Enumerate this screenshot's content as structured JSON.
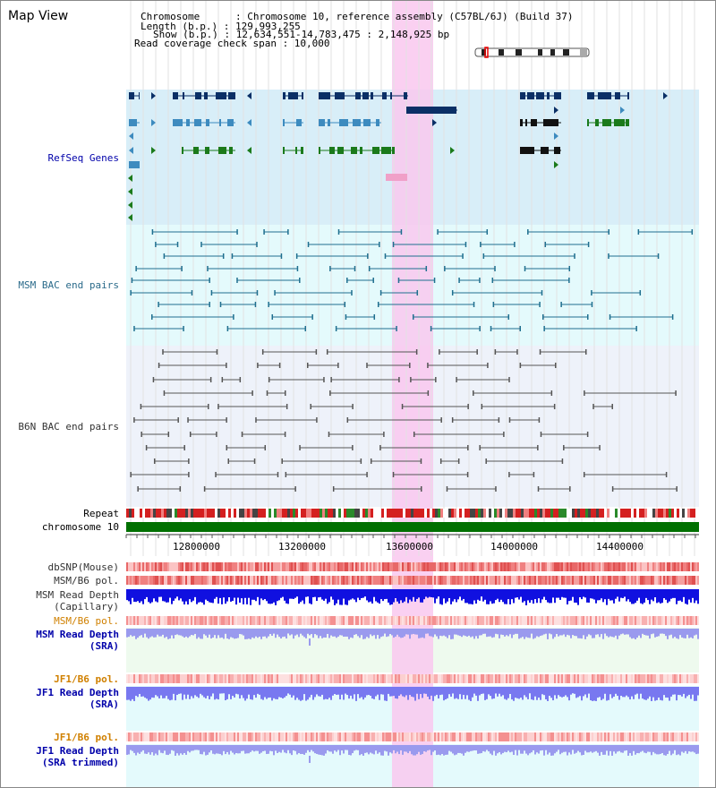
{
  "header": {
    "title": "Map View",
    "info_lines": [
      "Chromosome      : Chromosome 10, reference assembly (C57BL/6J) (Build 37)",
      "Length (b.p.) : 129,993,255",
      "Show (b.p.) : 12,634,551-14,783,475 : 2,148,925 bp",
      "Read coverage check span : 10,000"
    ]
  },
  "tracks": {
    "refseq": {
      "label": "RefSeq Genes",
      "color": "#0000aa"
    },
    "msm_bac": {
      "label": "MSM BAC end pairs",
      "color": "#2a6a8a"
    },
    "b6n_bac": {
      "label": "B6N BAC end pairs",
      "color": "#333333"
    },
    "repeat": {
      "label": "Repeat",
      "color": "#000000"
    },
    "chromosome": {
      "label": "chromosome 10",
      "color": "#000000"
    },
    "dbsnp": {
      "label": "dbSNP(Mouse)",
      "color": "#333333"
    },
    "msm_pol_1": {
      "label": "MSM/B6 pol.",
      "color": "#333333"
    },
    "msm_depth_cap": {
      "label": "MSM Read Depth\n(Capillary)",
      "color": "#333333"
    },
    "msm_pol_2": {
      "label": "MSM/B6 pol.",
      "color": "#d08000"
    },
    "msm_depth_sra": {
      "label": "MSM Read Depth\n(SRA)",
      "color": "#0000aa"
    },
    "jf1_pol_1": {
      "label": "JF1/B6 pol.",
      "color": "#d08000"
    },
    "jf1_depth_sra": {
      "label": "JF1 Read Depth\n(SRA)",
      "color": "#0000aa"
    },
    "jf1_pol_2": {
      "label": "JF1/B6 pol.",
      "color": "#d08000"
    },
    "jf1_depth_trim": {
      "label": "JF1 Read Depth\n(SRA trimmed)",
      "color": "#0000aa"
    }
  },
  "axis": {
    "ticks": [
      "12800000",
      "13200000",
      "13600000",
      "14000000",
      "14400000"
    ]
  },
  "colors": {
    "highlight": "#f9c8ef",
    "refseq_bg": "#d8eef8",
    "msm_bg": "#e4fafc",
    "b6n_bg": "#eef2fa",
    "chromosome_bar": "#007000"
  }
}
